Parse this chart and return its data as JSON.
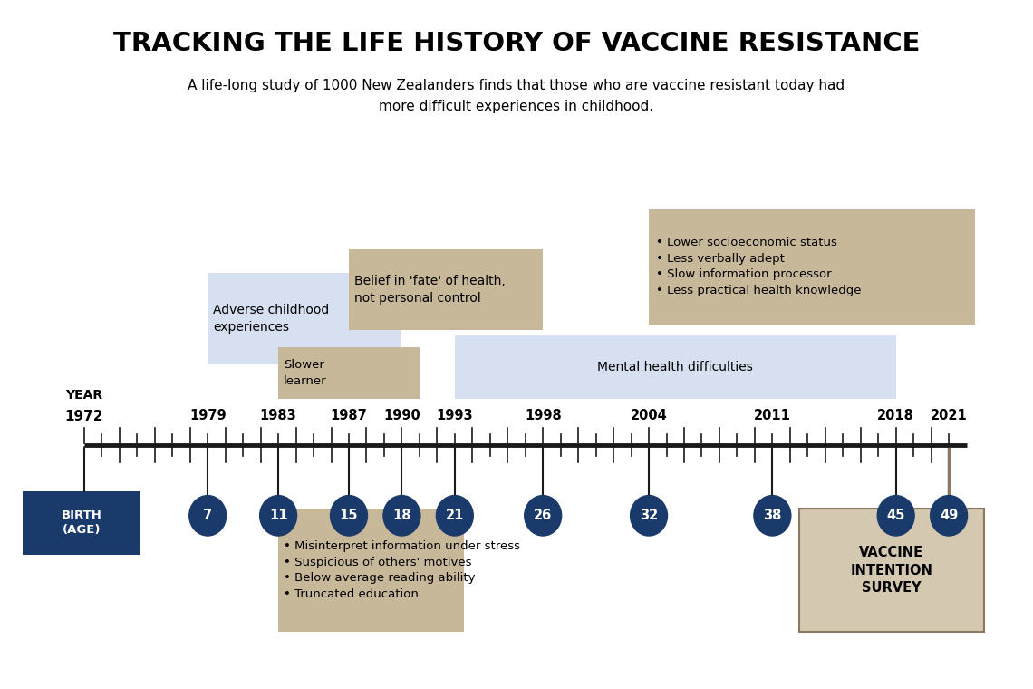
{
  "title": "TRACKING THE LIFE HISTORY OF VACCINE RESISTANCE",
  "subtitle": "A life-long study of 1000 New Zealanders finds that those who are vaccine resistant today had\nmore difficult experiences in childhood.",
  "bg_color": "#ffffff",
  "timeline_color": "#1a1a1a",
  "box_blue_light": "#d6e0f0",
  "box_tan": "#c8b89a",
  "box_tan_light": "#d4c9b0",
  "circle_color": "#1a3a6b",
  "circle_text_color": "#ffffff",
  "birth_box_color": "#1a3a6b",
  "birth_text_color": "#ffffff",
  "years": [
    1972,
    1979,
    1983,
    1987,
    1990,
    1993,
    1998,
    2004,
    2011,
    2018,
    2021
  ],
  "ages": [
    0,
    7,
    11,
    15,
    18,
    21,
    26,
    32,
    38,
    45,
    49
  ],
  "year_min": 1972,
  "year_max": 2022
}
